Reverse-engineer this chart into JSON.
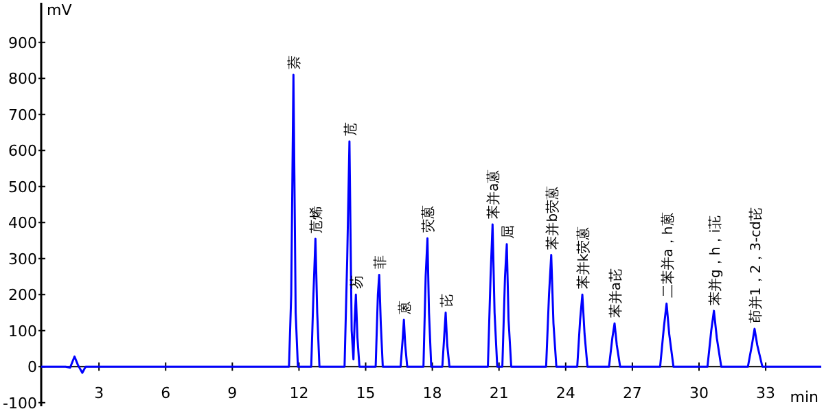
{
  "chart_data": {
    "type": "line",
    "xlabel": "min",
    "ylabel": "mV",
    "xlim": [
      0.4,
      35.5
    ],
    "ylim": [
      -110,
      1010
    ],
    "xticks": [
      3,
      6,
      9,
      12,
      15,
      18,
      21,
      24,
      27,
      30,
      33
    ],
    "yticks": [
      -100,
      0,
      100,
      200,
      300,
      400,
      500,
      600,
      700,
      800,
      900
    ],
    "grid": false,
    "marker": "none",
    "line_style": "solid",
    "series": [
      {
        "color": "#0000ff",
        "x": [
          0.4,
          1.5,
          1.7,
          1.9,
          2.05,
          2.25,
          2.4,
          11.4,
          11.55,
          11.65,
          11.75,
          11.85,
          11.95,
          12.55,
          12.65,
          12.74,
          12.82,
          12.92,
          14.05,
          14.17,
          14.27,
          14.37,
          14.45,
          14.5,
          14.56,
          14.63,
          14.72,
          15.45,
          15.55,
          15.61,
          15.68,
          15.77,
          16.57,
          16.67,
          16.72,
          16.78,
          16.87,
          17.6,
          17.7,
          17.78,
          17.85,
          17.95,
          18.45,
          18.55,
          18.6,
          18.67,
          18.77,
          20.5,
          20.62,
          20.71,
          20.8,
          20.92,
          21.15,
          21.27,
          21.35,
          21.43,
          21.55,
          23.12,
          23.25,
          23.35,
          23.45,
          23.58,
          24.52,
          24.65,
          24.75,
          24.85,
          24.98,
          25.95,
          26.1,
          26.2,
          26.3,
          26.45,
          28.25,
          28.42,
          28.54,
          28.66,
          28.85,
          30.38,
          30.55,
          30.67,
          30.8,
          31.0,
          32.2,
          32.38,
          32.5,
          32.62,
          32.85,
          35.5
        ],
        "values": [
          0,
          0,
          -3,
          28,
          5,
          -17,
          0,
          0,
          0,
          200,
          810,
          150,
          0,
          0,
          200,
          355,
          150,
          0,
          0,
          300,
          625,
          100,
          20,
          120,
          200,
          80,
          0,
          0,
          200,
          255,
          120,
          0,
          0,
          80,
          130,
          60,
          0,
          0,
          250,
          356,
          150,
          0,
          0,
          100,
          150,
          60,
          0,
          0,
          250,
          395,
          150,
          0,
          0,
          250,
          340,
          130,
          0,
          0,
          200,
          310,
          120,
          0,
          0,
          130,
          200,
          90,
          0,
          0,
          80,
          120,
          60,
          0,
          0,
          110,
          175,
          90,
          0,
          0,
          100,
          155,
          80,
          0,
          0,
          60,
          105,
          60,
          0,
          0
        ]
      }
    ],
    "annotations": [
      {
        "text": "萘",
        "x": 11.75,
        "y": 810
      },
      {
        "text": "苊烯",
        "x": 12.74,
        "y": 355
      },
      {
        "text": "苊",
        "x": 14.27,
        "y": 625
      },
      {
        "text": "芴",
        "x": 14.56,
        "y": 200
      },
      {
        "text": "菲",
        "x": 15.61,
        "y": 255
      },
      {
        "text": "蒽",
        "x": 16.72,
        "y": 130
      },
      {
        "text": "荧蒽",
        "x": 17.78,
        "y": 356
      },
      {
        "text": "芘",
        "x": 18.6,
        "y": 150
      },
      {
        "text": "苯并a蒽",
        "x": 20.71,
        "y": 395
      },
      {
        "text": "屈",
        "x": 21.35,
        "y": 340
      },
      {
        "text": "苯并b荧蒽",
        "x": 23.35,
        "y": 310
      },
      {
        "text": "苯并k荧蒽",
        "x": 24.75,
        "y": 200
      },
      {
        "text": "苯并a芘",
        "x": 26.2,
        "y": 120
      },
      {
        "text": "二苯并a，h蒽",
        "x": 28.54,
        "y": 175
      },
      {
        "text": "苯并g，h，i苝",
        "x": 30.67,
        "y": 155
      },
      {
        "text": "茚并1，2，3-cd芘",
        "x": 32.5,
        "y": 105
      }
    ]
  }
}
